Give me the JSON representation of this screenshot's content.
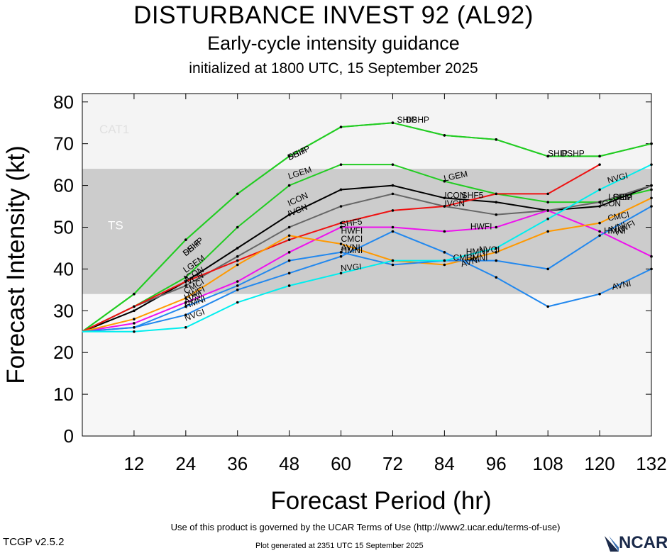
{
  "header": {
    "title": "DISTURBANCE INVEST 92 (AL92)",
    "subtitle": "Early-cycle intensity guidance",
    "initialized": "initialized at 1800 UTC, 15 September 2025"
  },
  "footer": {
    "terms": "Use of this product is governed by the UCAR Terms of Use (http://www2.ucar.edu/terms-of-use)",
    "version": "TCGP v2.5.2",
    "generated": "Plot generated at 2351 UTC   15 September 2025",
    "logo": "NCAR"
  },
  "chart_data": {
    "type": "line",
    "title": "DISTURBANCE INVEST 92 (AL92)",
    "subtitle": "Early-cycle intensity guidance",
    "xlabel": "Forecast Period (hr)",
    "ylabel": "Forecast Intensity (kt)",
    "xlim": [
      0,
      132
    ],
    "ylim": [
      0,
      82
    ],
    "xticks": [
      12,
      24,
      36,
      48,
      60,
      72,
      84,
      96,
      108,
      120,
      132
    ],
    "yticks": [
      0,
      10,
      20,
      30,
      40,
      50,
      60,
      70,
      80
    ],
    "bands": [
      {
        "label": "TS",
        "from": 34,
        "to": 64,
        "color": "#cccccc"
      },
      {
        "label": "CAT1",
        "from": 64,
        "to": 83,
        "color": "#f4f4f4"
      }
    ],
    "series": [
      {
        "name": "SHIP",
        "color": "#22cc22",
        "x": [
          0,
          12,
          24,
          36,
          48,
          60,
          72,
          84,
          96,
          108,
          120,
          132
        ],
        "y": [
          25,
          34,
          47,
          58,
          67,
          74,
          75,
          72,
          71,
          67,
          67,
          70
        ]
      },
      {
        "name": "DSHP",
        "color": "#22cc22",
        "x": [
          0,
          12,
          24,
          36,
          48,
          60,
          72,
          84,
          96,
          108,
          120,
          132
        ],
        "y": [
          25,
          34,
          47,
          58,
          67,
          74,
          75,
          72,
          71,
          67,
          67,
          70
        ]
      },
      {
        "name": "LGEM",
        "color": "#22cc22",
        "x": [
          0,
          12,
          24,
          36,
          48,
          60,
          72,
          84,
          96,
          108,
          120,
          132
        ],
        "y": [
          25,
          31,
          38,
          50,
          60,
          65,
          65,
          61,
          58,
          56,
          56,
          59
        ]
      },
      {
        "name": "ICON",
        "color": "#000000",
        "x": [
          0,
          12,
          24,
          36,
          48,
          60,
          72,
          84,
          96,
          108,
          120,
          132
        ],
        "y": [
          25,
          30,
          37,
          45,
          53,
          59,
          60,
          57,
          56,
          54,
          55,
          60
        ]
      },
      {
        "name": "IVCN",
        "color": "#666666",
        "x": [
          0,
          12,
          24,
          36,
          48,
          60,
          72,
          84,
          96,
          108,
          120,
          132
        ],
        "y": [
          25,
          31,
          36,
          43,
          50,
          55,
          58,
          55,
          53,
          54,
          56,
          60
        ]
      },
      {
        "name": "SHF5",
        "color": "#ee1111",
        "x": [
          0,
          12,
          24,
          36,
          48,
          60,
          72,
          84,
          96,
          108,
          120
        ],
        "y": [
          25,
          31,
          37,
          42,
          47,
          51,
          54,
          55,
          58,
          58,
          65
        ]
      },
      {
        "name": "HWFI",
        "color": "#ee11ee",
        "x": [
          0,
          12,
          24,
          36,
          48,
          60,
          72,
          84,
          96,
          108,
          120,
          132
        ],
        "y": [
          25,
          27,
          32,
          37,
          44,
          50,
          50,
          49,
          50,
          54,
          49,
          43
        ]
      },
      {
        "name": "CMCI",
        "color": "#ff9900",
        "x": [
          0,
          12,
          24,
          36,
          48,
          60,
          72,
          84,
          96,
          108,
          120,
          132
        ],
        "y": [
          25,
          28,
          33,
          41,
          48,
          46,
          42,
          41,
          44,
          49,
          51,
          57
        ]
      },
      {
        "name": "HMNI",
        "color": "#2288ee",
        "x": [
          0,
          12,
          24,
          36,
          48,
          60,
          72,
          84,
          96,
          108,
          120,
          132
        ],
        "y": [
          25,
          26,
          31,
          36,
          42,
          44,
          41,
          42,
          42,
          40,
          48,
          55
        ]
      },
      {
        "name": "AVNI",
        "color": "#2288ee",
        "x": [
          0,
          12,
          24,
          36,
          48,
          60,
          72,
          84,
          96,
          108,
          120,
          132
        ],
        "y": [
          25,
          26,
          29,
          35,
          39,
          43,
          49,
          44,
          38,
          31,
          34,
          40
        ]
      },
      {
        "name": "NVGI",
        "color": "#00eeee",
        "x": [
          0,
          12,
          24,
          36,
          48,
          60,
          72,
          84,
          96,
          108,
          120,
          132
        ],
        "y": [
          25,
          25,
          26,
          32,
          36,
          39,
          42,
          42,
          45,
          52,
          59,
          65
        ]
      }
    ],
    "labels": [
      {
        "text": "DSHP",
        "x": 24,
        "y": 43,
        "rot": -40
      },
      {
        "text": "SHIP",
        "x": 24,
        "y": 43,
        "rot": -40
      },
      {
        "text": "LGEM",
        "x": 24,
        "y": 39,
        "rot": -35
      },
      {
        "text": "ICON",
        "x": 24,
        "y": 37,
        "rot": -28
      },
      {
        "text": "IVCN",
        "x": 24,
        "y": 36,
        "rot": -25
      },
      {
        "text": "CMCI",
        "x": 24,
        "y": 34,
        "rot": -30
      },
      {
        "text": "HWFI",
        "x": 24,
        "y": 32.5,
        "rot": -25
      },
      {
        "text": "AVNI",
        "x": 24,
        "y": 31.5,
        "rot": -25
      },
      {
        "text": "HMNI",
        "x": 24,
        "y": 30.5,
        "rot": -20
      },
      {
        "text": "NVGI",
        "x": 24,
        "y": 27.5,
        "rot": -20
      },
      {
        "text": "SHIP",
        "x": 48,
        "y": 66,
        "rot": -25
      },
      {
        "text": "DSHP",
        "x": 48,
        "y": 66,
        "rot": -25
      },
      {
        "text": "LGEM",
        "x": 48,
        "y": 61.5,
        "rot": -18
      },
      {
        "text": "ICON",
        "x": 48,
        "y": 55,
        "rot": -25
      },
      {
        "text": "IVCN",
        "x": 48,
        "y": 52.5,
        "rot": -22
      },
      {
        "text": "SHF5",
        "x": 60,
        "y": 50,
        "rot": -8
      },
      {
        "text": "HWFI",
        "x": 60,
        "y": 48.5,
        "rot": 0
      },
      {
        "text": "CMCI",
        "x": 60,
        "y": 46.5,
        "rot": 0
      },
      {
        "text": "AVNI",
        "x": 60,
        "y": 44.5,
        "rot": 0
      },
      {
        "text": "HMNI",
        "x": 60,
        "y": 43.8,
        "rot": 0
      },
      {
        "text": "NVGI",
        "x": 60,
        "y": 39.5,
        "rot": -5
      },
      {
        "text": "SHIP",
        "x": 73,
        "y": 75,
        "rot": 0
      },
      {
        "text": "DSHP",
        "x": 75,
        "y": 75,
        "rot": 0
      },
      {
        "text": "LGEM",
        "x": 84,
        "y": 61,
        "rot": -12
      },
      {
        "text": "ICON",
        "x": 84,
        "y": 57,
        "rot": 0
      },
      {
        "text": "SHF5",
        "x": 88,
        "y": 57,
        "rot": 0
      },
      {
        "text": "IVCN",
        "x": 84,
        "y": 55,
        "rot": 0
      },
      {
        "text": "HWFI",
        "x": 90,
        "y": 49.5,
        "rot": 0
      },
      {
        "text": "HMNI",
        "x": 89,
        "y": 43.5,
        "rot": 0
      },
      {
        "text": "NVGI",
        "x": 92,
        "y": 44,
        "rot": 0
      },
      {
        "text": "HMNI",
        "x": 89,
        "y": 42,
        "rot": 0
      },
      {
        "text": "CMCI",
        "x": 86,
        "y": 42,
        "rot": 0
      },
      {
        "text": "AVNI",
        "x": 88,
        "y": 40.5,
        "rot": -15
      },
      {
        "text": "SHIP",
        "x": 108,
        "y": 67,
        "rot": 0
      },
      {
        "text": "DSHP",
        "x": 111,
        "y": 67,
        "rot": 0
      },
      {
        "text": "NVGI",
        "x": 122,
        "y": 60.5,
        "rot": -15
      },
      {
        "text": "LGEM",
        "x": 122,
        "y": 56.5,
        "rot": 0
      },
      {
        "text": "SHIP",
        "x": 123,
        "y": 56.5,
        "rot": 0
      },
      {
        "text": "ICON",
        "x": 120,
        "y": 55,
        "rot": 0
      },
      {
        "text": "CMCI",
        "x": 122,
        "y": 51.5,
        "rot": -10
      },
      {
        "text": "AVNI",
        "x": 122,
        "y": 48.5,
        "rot": -20
      },
      {
        "text": "HMNI",
        "x": 121,
        "y": 48.5,
        "rot": 0
      },
      {
        "text": "HWFI",
        "x": 124,
        "y": 48,
        "rot": -30
      },
      {
        "text": "AVNI",
        "x": 123,
        "y": 35,
        "rot": -12
      }
    ]
  }
}
